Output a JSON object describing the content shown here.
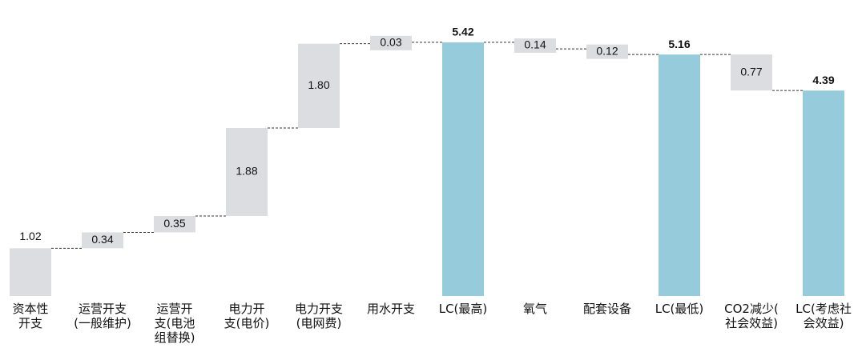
{
  "chart_data": {
    "type": "waterfall",
    "categories": [
      "资本性\n开支",
      "运营开支\n(一般维护)",
      "运营开\n支(电池\n组替换)",
      "电力开\n支(电价)",
      "电力开支\n(电网费)",
      "用水开支",
      "LC(最高)",
      "氧气",
      "配套设备",
      "LC(最低)",
      "CO2减少(\n社会效益)",
      "LC(考虑社\n会效益)"
    ],
    "values": [
      1.02,
      0.34,
      0.35,
      1.88,
      1.8,
      0.03,
      5.42,
      -0.14,
      -0.12,
      5.16,
      -0.77,
      4.39
    ],
    "value_labels": [
      "1.02",
      "0.34",
      "0.35",
      "1.88",
      "1.80",
      "0.03",
      "5.42",
      "0.14",
      "0.12",
      "5.16",
      "0.77",
      "4.39"
    ],
    "measure": [
      "relative",
      "relative",
      "relative",
      "relative",
      "relative",
      "relative",
      "total",
      "relative",
      "relative",
      "total",
      "relative",
      "total"
    ],
    "colors": {
      "relative": "#dcdde1",
      "total": "#96cbdc"
    },
    "ylim": [
      0,
      6
    ]
  }
}
